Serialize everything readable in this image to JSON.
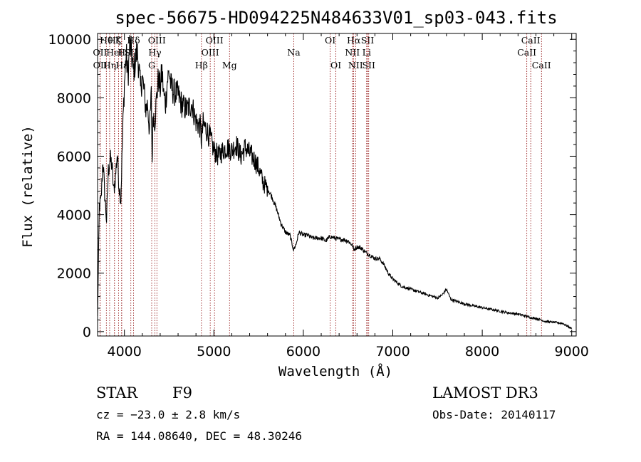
{
  "chart_data": {
    "type": "line",
    "title": "spec-56675-HD094225N484633V01_sp03-043.fits",
    "xlabel": "Wavelength (Å)",
    "ylabel": "Flux (relative)",
    "xlim": [
      3700,
      9050
    ],
    "ylim": [
      -150,
      10200
    ],
    "xticks": [
      4000,
      5000,
      6000,
      7000,
      8000,
      9000
    ],
    "yticks": [
      0,
      2000,
      4000,
      6000,
      8000,
      10000
    ],
    "grid": false,
    "legend": "none",
    "line_color": "#000000",
    "marker_color": "#8b0000",
    "spectrum": {
      "x": [
        3700,
        3720,
        3740,
        3760,
        3780,
        3800,
        3820,
        3840,
        3860,
        3880,
        3900,
        3920,
        3940,
        3960,
        3980,
        4000,
        4020,
        4040,
        4060,
        4080,
        4100,
        4120,
        4140,
        4160,
        4180,
        4200,
        4220,
        4240,
        4260,
        4280,
        4300,
        4310,
        4320,
        4340,
        4360,
        4380,
        4400,
        4420,
        4440,
        4460,
        4480,
        4500,
        4520,
        4550,
        4600,
        4650,
        4700,
        4750,
        4800,
        4850,
        4861,
        4880,
        4920,
        4960,
        5000,
        5050,
        5100,
        5150,
        5200,
        5250,
        5300,
        5350,
        5400,
        5450,
        5500,
        5550,
        5600,
        5650,
        5700,
        5750,
        5800,
        5850,
        5890,
        5920,
        5950,
        6000,
        6050,
        6100,
        6150,
        6200,
        6250,
        6300,
        6350,
        6400,
        6450,
        6500,
        6550,
        6563,
        6600,
        6650,
        6700,
        6750,
        6800,
        6850,
        6900,
        6950,
        7000,
        7100,
        7200,
        7300,
        7400,
        7500,
        7550,
        7600,
        7650,
        7700,
        7800,
        7900,
        8000,
        8100,
        8200,
        8300,
        8400,
        8500,
        8542,
        8600,
        8662,
        8700,
        8800,
        8900,
        9000
      ],
      "y": [
        500,
        4300,
        4500,
        5900,
        4700,
        3800,
        5500,
        5900,
        5700,
        4800,
        5300,
        6100,
        5000,
        4500,
        6800,
        8500,
        9500,
        8700,
        9800,
        9500,
        8900,
        9200,
        9600,
        9100,
        8300,
        8700,
        8200,
        7600,
        7800,
        6900,
        8100,
        5800,
        7500,
        7200,
        8000,
        8700,
        8300,
        8900,
        8100,
        7800,
        8600,
        8900,
        8400,
        8200,
        8100,
        7700,
        7600,
        7800,
        7200,
        7000,
        6500,
        7100,
        6900,
        6600,
        6200,
        6000,
        6200,
        6300,
        6200,
        6400,
        6000,
        6300,
        6100,
        5900,
        5600,
        5100,
        4900,
        4600,
        4200,
        3700,
        3400,
        3300,
        2800,
        3000,
        3400,
        3300,
        3300,
        3200,
        3200,
        3200,
        3100,
        3250,
        3200,
        3150,
        3150,
        3100,
        2950,
        2800,
        2900,
        2850,
        2700,
        2600,
        2500,
        2500,
        2300,
        2000,
        1800,
        1550,
        1450,
        1350,
        1250,
        1150,
        1250,
        1450,
        1100,
        1050,
        950,
        880,
        820,
        760,
        700,
        640,
        600,
        520,
        480,
        450,
        400,
        350,
        320,
        280,
        100
      ]
    },
    "line_markers": [
      {
        "label": "Hθ",
        "x": 3798,
        "row": 0
      },
      {
        "label": "OII",
        "x": 3727,
        "row": 1
      },
      {
        "label": "OII",
        "x": 3729,
        "row": 2
      },
      {
        "label": "K",
        "x": 3934,
        "row": 0
      },
      {
        "label": "HeI",
        "x": 3889,
        "row": 1
      },
      {
        "label": "Hη",
        "x": 3835,
        "row": 2
      },
      {
        "label": "Hζ",
        "x": 3889,
        "row": 0
      },
      {
        "label": "H",
        "x": 3968,
        "row": 1
      },
      {
        "label": "Hε",
        "x": 3970,
        "row": 2
      },
      {
        "label": "Hδ",
        "x": 4102,
        "row": 0
      },
      {
        "label": "SII",
        "x": 4072,
        "row": 1
      },
      {
        "label": "OIII",
        "x": 4363,
        "row": 0
      },
      {
        "label": "Hγ",
        "x": 4340,
        "row": 1
      },
      {
        "label": "G",
        "x": 4305,
        "row": 2
      },
      {
        "label": "OIII",
        "x": 5007,
        "row": 0
      },
      {
        "label": "OIII",
        "x": 4959,
        "row": 1
      },
      {
        "label": "Hβ",
        "x": 4861,
        "row": 2
      },
      {
        "label": "Mg",
        "x": 5175,
        "row": 2
      },
      {
        "label": "Na",
        "x": 5893,
        "row": 1
      },
      {
        "label": "OI",
        "x": 6300,
        "row": 0
      },
      {
        "label": "OI",
        "x": 6364,
        "row": 2
      },
      {
        "label": "Hα",
        "x": 6563,
        "row": 0
      },
      {
        "label": "NII",
        "x": 6548,
        "row": 1
      },
      {
        "label": "NII",
        "x": 6584,
        "row": 2
      },
      {
        "label": "SII",
        "x": 6717,
        "row": 0
      },
      {
        "label": "Li",
        "x": 6708,
        "row": 1
      },
      {
        "label": "SII",
        "x": 6731,
        "row": 2
      },
      {
        "label": "CaII",
        "x": 8542,
        "row": 0
      },
      {
        "label": "CaII",
        "x": 8498,
        "row": 1
      },
      {
        "label": "CaII",
        "x": 8662,
        "row": 2
      }
    ]
  },
  "info": {
    "class": "STAR",
    "subclass": "F9",
    "survey": "LAMOST DR3",
    "cz": "cz = −23.0 ± 2.8 km/s",
    "obs_date": "Obs-Date: 20140117",
    "coords": "RA = 144.08640, DEC =  48.30246"
  }
}
